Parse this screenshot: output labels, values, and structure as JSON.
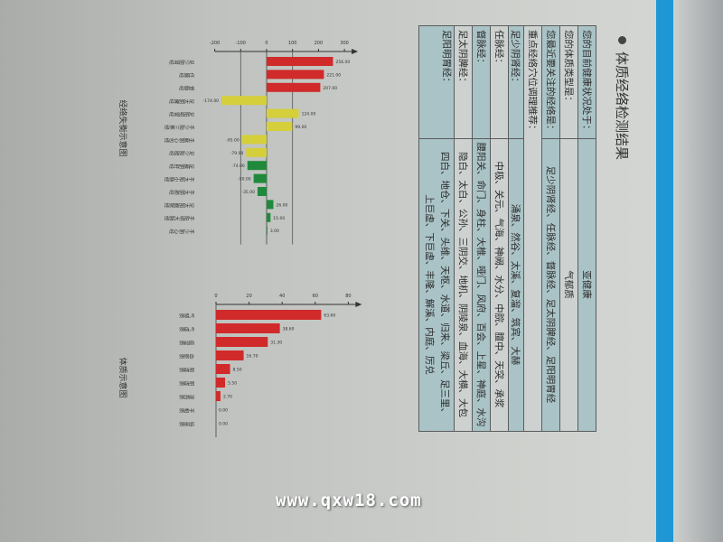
{
  "colors": {
    "stripe": "#1f97d4",
    "red": "#d02a2a",
    "yellow": "#d4cf3a",
    "green": "#1f8a3a",
    "teal_row": "#aac3c6"
  },
  "section_title": "体质经络检测结果",
  "summary": [
    {
      "label": "您的目前健康状况处于：",
      "value": "亚健康"
    },
    {
      "label": "您的体质类型是：",
      "value": "气郁质"
    },
    {
      "label": "您最近要关注的经络是：",
      "value": "足少阴肾经、任脉经、督脉经、足太阴脾经、足阳明胃经"
    }
  ],
  "recommend_header": "重点经络穴位调理推荐：",
  "meridians": [
    {
      "label": "足少阴肾经：",
      "points": "涌泉、然谷、太溪、复溜、筑宾、大赫"
    },
    {
      "label": "任脉经：",
      "points": "中极、关元、气海、神阙、水分、中脘、膻中、天突、承浆"
    },
    {
      "label": "督脉经：",
      "points": "腰阳关、命门、身柱、大椎、哑门、风府、百会、上星、神庭、水沟"
    },
    {
      "label": "足太阴脾经：",
      "points": "隐白、太白、公孙、三阴交、地机、阴陵泉、血海、大横、大包"
    },
    {
      "label": "足阳明胃经：",
      "points": "四白、地仓、下关、头维、天枢、水道、归来、梁丘、足三里、",
      "points2": "上巨虚、下巨虚、丰隆、解溪、内庭、厉兑"
    }
  ],
  "chart_data": [
    {
      "type": "bar",
      "title": "经络失衡示意图",
      "categories": [
        "足少阴肾经",
        "任脉经",
        "督脉经",
        "足太阴脾经",
        "足阳明胃经",
        "手少阳三焦经",
        "手厥阴心包经",
        "足少阳胆经",
        "足厥阴肝经",
        "手太阳小肠经",
        "手太阴肺经",
        "足太阳膀胱经",
        "手阳明大肠经",
        "手少阴心经"
      ],
      "values": [
        256,
        221,
        207,
        -174,
        124,
        99,
        -95,
        -79,
        -74,
        -50,
        -35,
        26,
        15,
        3
      ],
      "bar_colors": [
        "red",
        "red",
        "red",
        "yellow",
        "yellow",
        "yellow",
        "yellow",
        "yellow",
        "green",
        "green",
        "green",
        "green",
        "green",
        "green"
      ],
      "ticks": [
        -200,
        -100,
        0,
        100,
        200,
        300
      ],
      "ylim": [
        -200,
        300
      ],
      "reference_lines": [
        -100,
        100
      ]
    },
    {
      "type": "bar",
      "title": "体质示意图",
      "categories": [
        "气郁质",
        "气虚质",
        "痰湿质",
        "血瘀质",
        "阳虚质",
        "阴虚质",
        "湿热质",
        "平和质",
        "特禀质"
      ],
      "values": [
        63.6,
        38.6,
        31.3,
        16.7,
        8.5,
        5.5,
        2.7,
        0,
        0
      ],
      "ticks": [
        0,
        20,
        40,
        60,
        80
      ],
      "ylim": [
        0,
        80
      ]
    }
  ],
  "watermark": "www.qxw18.com"
}
